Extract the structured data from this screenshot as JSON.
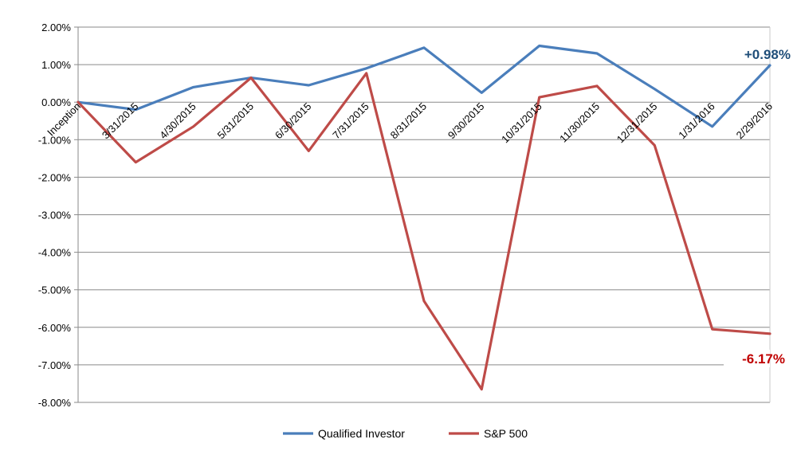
{
  "chart_data": {
    "type": "line",
    "categories": [
      "Inception",
      "3/31/2015",
      "4/30/2015",
      "5/31/2015",
      "6/30/2015",
      "7/31/2015",
      "8/31/2015",
      "9/30/2015",
      "10/31/2015",
      "11/30/2015",
      "12/31/2015",
      "1/31/2016",
      "2/29/2016"
    ],
    "series": [
      {
        "name": "Qualified Investor",
        "color": "#4a7ebb",
        "values": [
          0.0,
          -0.2,
          0.4,
          0.65,
          0.45,
          0.9,
          1.45,
          0.25,
          1.5,
          1.3,
          0.35,
          -0.65,
          0.98
        ],
        "end_label": "+0.98%",
        "end_label_color": "#1f4e79"
      },
      {
        "name": "S&P 500",
        "color": "#be4b48",
        "values": [
          0.0,
          -1.6,
          -0.65,
          0.65,
          -1.3,
          0.77,
          -5.3,
          -7.65,
          0.13,
          0.43,
          -1.15,
          -6.05,
          -6.17
        ],
        "end_label": "-6.17%",
        "end_label_color": "#c00000"
      }
    ],
    "y_ticks": [
      "2.00%",
      "1.00%",
      "0.00%",
      "-1.00%",
      "-2.00%",
      "-3.00%",
      "-4.00%",
      "-5.00%",
      "-6.00%",
      "-7.00%",
      "-8.00%"
    ],
    "ylim": [
      -8,
      2
    ],
    "grid": true,
    "legend_position": "bottom",
    "title": "",
    "xlabel": "",
    "ylabel": ""
  }
}
